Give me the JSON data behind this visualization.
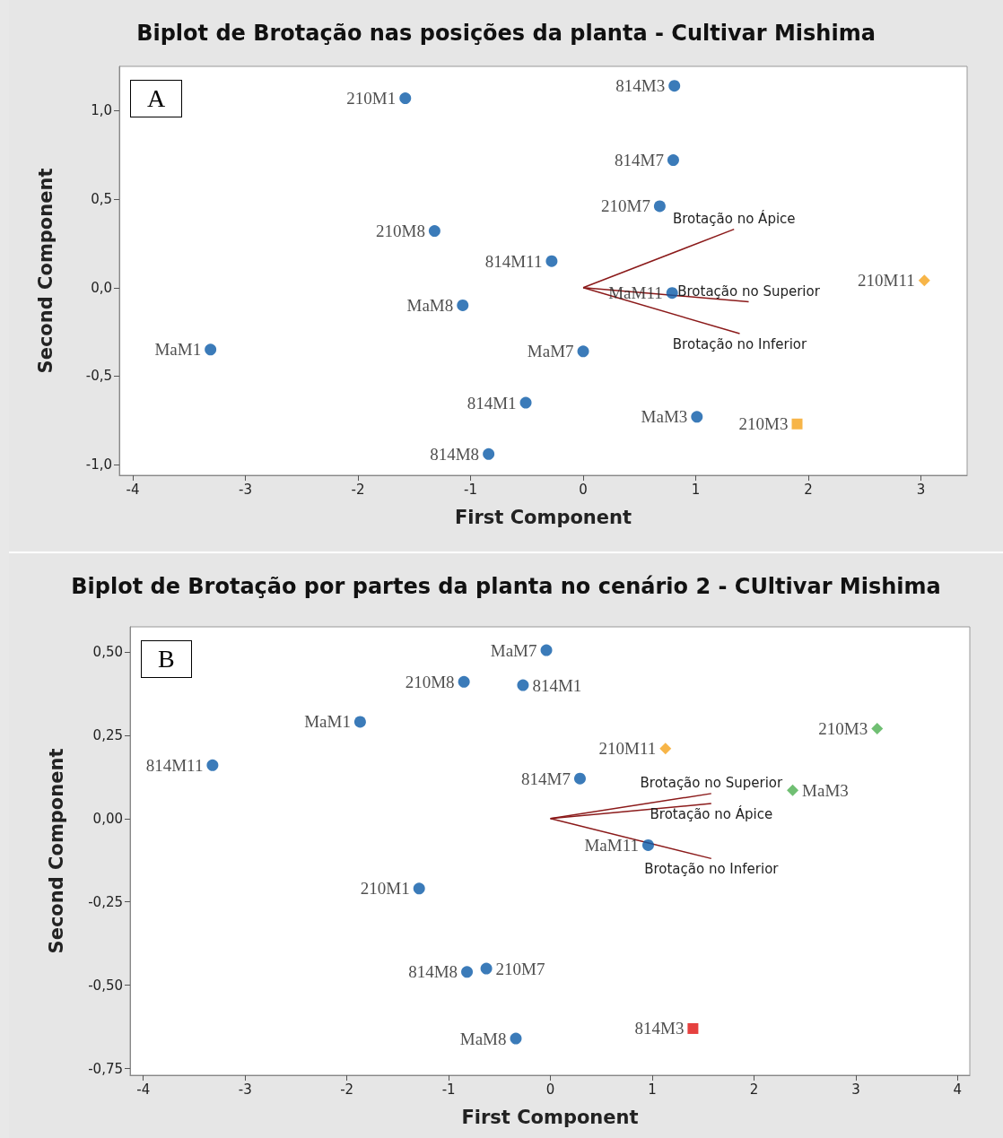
{
  "chart_data": [
    {
      "type": "scatter",
      "title": "Biplot de Brotação nas posições da planta - Cultivar Mishima",
      "xlabel": "First Component",
      "ylabel": "Second Component",
      "annotations": [
        "A"
      ],
      "grid": false,
      "xlim": [
        -4.12,
        3.41
      ],
      "xticks": [
        -4,
        -3,
        -2,
        -1,
        0,
        1,
        2,
        3
      ],
      "ylim": [
        -1.06,
        1.25
      ],
      "yticks": [
        {
          "value": -1,
          "label": "-1,0"
        },
        {
          "value": -0.5,
          "label": "-0,5"
        },
        {
          "value": 0,
          "label": "0,0"
        },
        {
          "value": 0.5,
          "label": "0,5"
        },
        {
          "value": 1,
          "label": "1,0"
        }
      ],
      "series": [
        {
          "marker": "circle",
          "color": "#0a5aa8",
          "x": [
            -1.58,
            0.81,
            0.8,
            0.68,
            -1.32,
            -0.28,
            -1.07,
            0.79,
            -3.31,
            0.0,
            -0.51,
            1.01,
            -0.84
          ],
          "values": [
            1.07,
            1.14,
            0.72,
            0.46,
            0.32,
            0.15,
            -0.1,
            -0.03,
            -0.35,
            -0.36,
            -0.65,
            -0.73,
            -0.94
          ],
          "value_labels": [
            "210M1",
            "814M3",
            "814M7",
            "210M7",
            "210M8",
            "814M11",
            "MaM8",
            "MaM11",
            "MaM1",
            "MaM7",
            "814M1",
            "MaM3",
            "814M8"
          ]
        },
        {
          "marker": "diamond",
          "color": "#f5a31a",
          "x": [
            3.03
          ],
          "values": [
            0.04
          ],
          "value_labels": [
            "210M11"
          ]
        },
        {
          "marker": "square",
          "color": "#f5a31a",
          "x": [
            1.9
          ],
          "values": [
            -0.77
          ],
          "value_labels": [
            "210M3"
          ]
        },
        {
          "type": "line",
          "marker": "none",
          "line_style": "solid",
          "color": "#8b1a1a",
          "x": [
            0,
            1.34
          ],
          "values": [
            0,
            0.33
          ],
          "value_labels": [
            null,
            "Brotação no Ápice"
          ]
        },
        {
          "type": "line",
          "marker": "none",
          "line_style": "solid",
          "color": "#8b1a1a",
          "x": [
            0,
            1.47
          ],
          "values": [
            0,
            -0.08
          ],
          "value_labels": [
            null,
            "Brotação no Superior"
          ]
        },
        {
          "type": "line",
          "marker": "none",
          "line_style": "solid",
          "color": "#8b1a1a",
          "x": [
            0,
            1.39
          ],
          "values": [
            0,
            -0.26
          ],
          "value_labels": [
            null,
            "Brotação no Inferior"
          ]
        }
      ]
    },
    {
      "type": "scatter",
      "title": "Biplot de Brotação por partes da planta no cenário 2 - CUltivar Mishima",
      "xlabel": "First Component",
      "ylabel": "Second Component",
      "annotations": [
        "B"
      ],
      "grid": false,
      "xlim": [
        -4.13,
        4.12
      ],
      "xticks": [
        -4,
        -3,
        -2,
        -1,
        0,
        1,
        2,
        3,
        4
      ],
      "ylim": [
        -0.77,
        0.575
      ],
      "yticks": [
        {
          "value": -0.75,
          "label": "-0,75"
        },
        {
          "value": -0.5,
          "label": "-0,50"
        },
        {
          "value": -0.25,
          "label": "-0,25"
        },
        {
          "value": 0,
          "label": "0,00"
        },
        {
          "value": 0.25,
          "label": "0,25"
        },
        {
          "value": 0.5,
          "label": "0,50"
        }
      ],
      "series": [
        {
          "marker": "circle",
          "color": "#0a5aa8",
          "x": [
            -0.04,
            -0.85,
            -0.27,
            -1.87,
            -3.32,
            0.29,
            0.96,
            -1.29,
            -0.63,
            -0.82,
            -0.34
          ],
          "values": [
            0.505,
            0.41,
            0.4,
            0.29,
            0.16,
            0.12,
            -0.08,
            -0.21,
            -0.45,
            -0.46,
            -0.66
          ],
          "value_labels": [
            "MaM7",
            "210M8",
            "814M1",
            "MaM1",
            "814M11",
            "814M7",
            "MaM11",
            "210M1",
            "210M7",
            "814M8",
            "MaM8"
          ]
        },
        {
          "marker": "diamond",
          "color": "#f5a31a",
          "x": [
            1.13
          ],
          "values": [
            0.21
          ],
          "value_labels": [
            "210M11"
          ]
        },
        {
          "marker": "diamond",
          "color": "#4caf50",
          "x": [
            3.21,
            2.38
          ],
          "values": [
            0.27,
            0.085
          ],
          "value_labels": [
            "210M3",
            "MaM3"
          ]
        },
        {
          "marker": "square",
          "color": "#e0120f",
          "x": [
            1.4
          ],
          "values": [
            -0.63
          ],
          "value_labels": [
            "814M3"
          ]
        },
        {
          "type": "line",
          "marker": "none",
          "line_style": "solid",
          "color": "#8b1a1a",
          "x": [
            0,
            1.58
          ],
          "values": [
            0,
            0.075
          ],
          "value_labels": [
            null,
            "Brotação no Superior"
          ]
        },
        {
          "type": "line",
          "marker": "none",
          "line_style": "solid",
          "color": "#8b1a1a",
          "x": [
            0,
            1.58
          ],
          "values": [
            0,
            0.045
          ],
          "value_labels": [
            null,
            "Brotação no Ápice"
          ]
        },
        {
          "type": "line",
          "marker": "none",
          "line_style": "solid",
          "color": "#8b1a1a",
          "x": [
            0,
            1.58
          ],
          "values": [
            0,
            -0.12
          ],
          "value_labels": [
            null,
            "Brotação no Inferior"
          ]
        }
      ]
    }
  ]
}
